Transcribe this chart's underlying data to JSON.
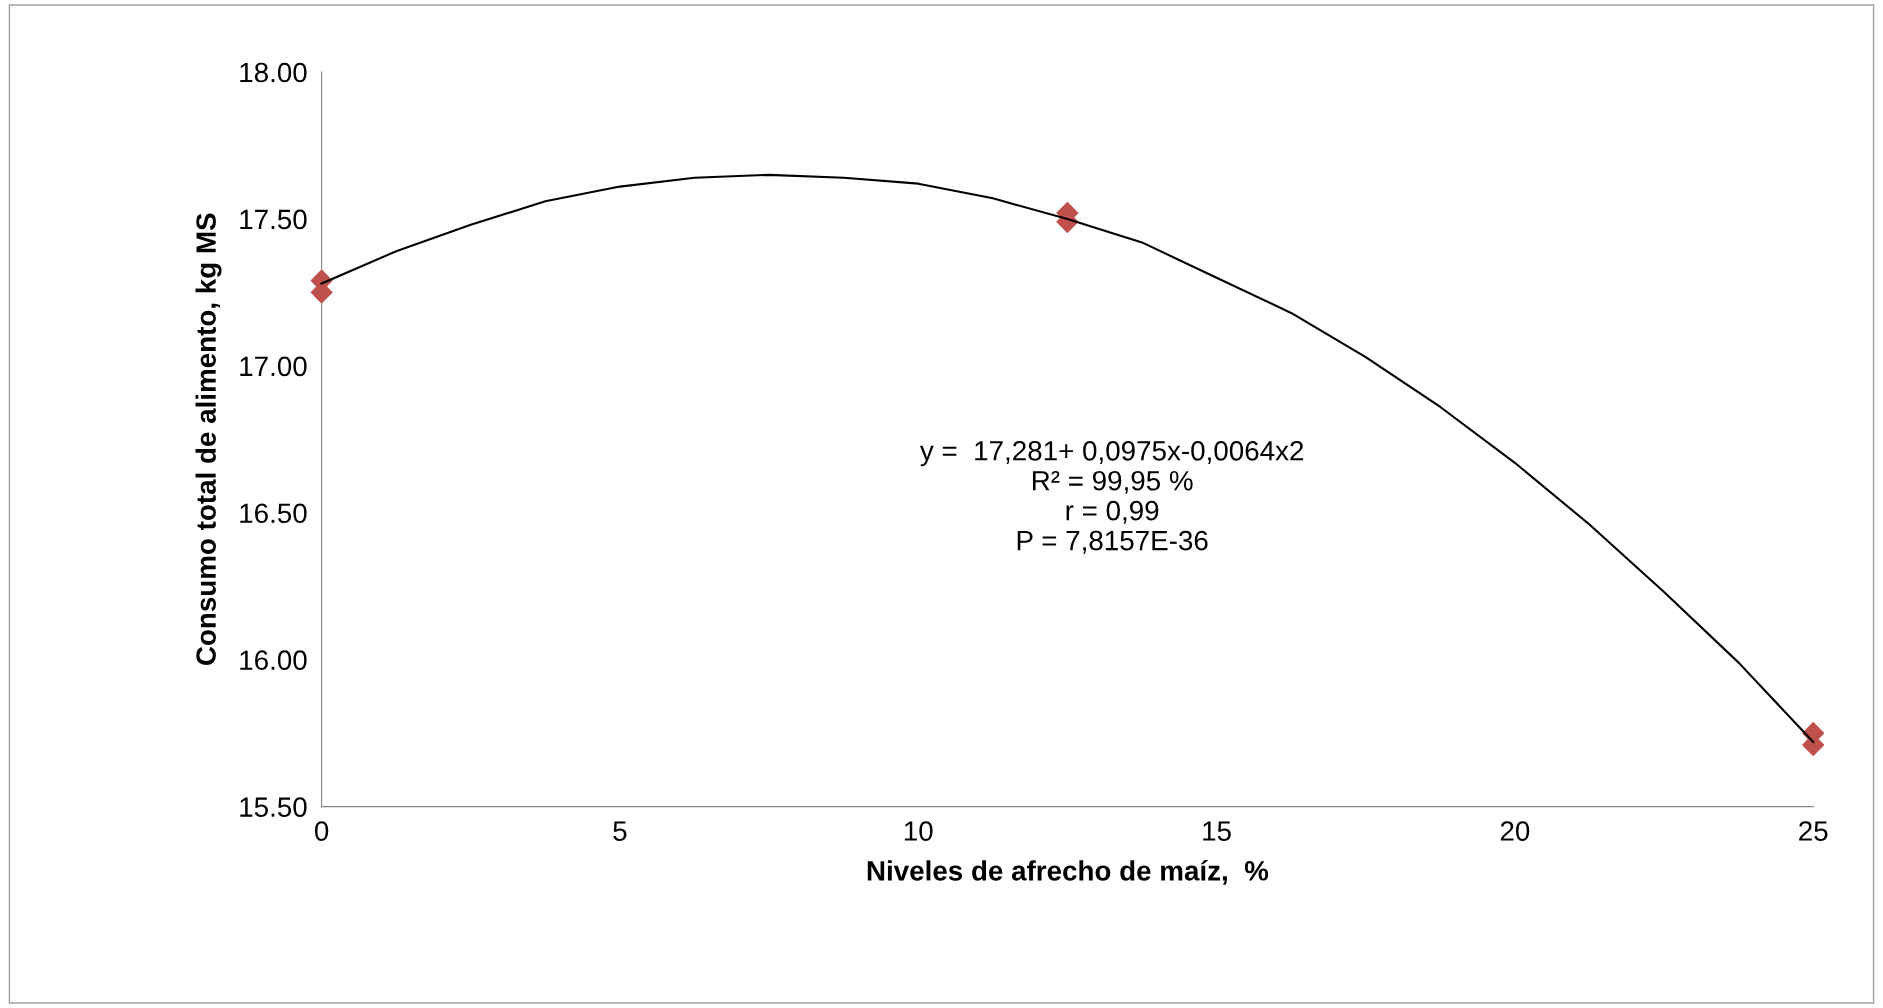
{
  "chart_data": {
    "type": "scatter",
    "xlabel": "Niveles de afrecho de maíz,  %",
    "ylabel": "Consumo total de alimento, kg MS",
    "xlim": [
      0,
      25
    ],
    "xticks": [
      0,
      5,
      10,
      15,
      20,
      25
    ],
    "ylim": [
      15.5,
      18.0
    ],
    "yticks": [
      {
        "value": 15.5,
        "label": "15.50"
      },
      {
        "value": 16.0,
        "label": "16.00"
      },
      {
        "value": 16.5,
        "label": "16.50"
      },
      {
        "value": 17.0,
        "label": "17.00"
      },
      {
        "value": 17.5,
        "label": "17.50"
      },
      {
        "value": 18.0,
        "label": "18.00"
      }
    ],
    "grid": false,
    "legend": false,
    "marker": "diamond",
    "series": [
      {
        "color": "#c0504d",
        "x": [
          0,
          0,
          12.5,
          12.5,
          25,
          25
        ],
        "values": [
          17.29,
          17.25,
          17.52,
          17.49,
          15.75,
          15.71
        ]
      },
      {
        "type": "line",
        "color": "#000000",
        "marker": "none",
        "x": [
          0,
          1.25,
          2.5,
          3.75,
          5,
          6.25,
          7.5,
          8.75,
          10,
          11.25,
          12.5,
          13.75,
          15,
          16.25,
          17.5,
          18.75,
          20,
          21.25,
          22.5,
          23.75,
          25
        ],
        "values": [
          17.28,
          17.39,
          17.48,
          17.56,
          17.61,
          17.64,
          17.65,
          17.64,
          17.62,
          17.57,
          17.5,
          17.42,
          17.3,
          17.18,
          17.03,
          16.86,
          16.67,
          16.46,
          16.23,
          15.99,
          15.72
        ]
      }
    ],
    "annotations": [
      "y =  17,281+ 0,0975x-0,0064x2\nR² = 99,95 %\nr = 0,99\nP = 7,8157E-36"
    ]
  }
}
